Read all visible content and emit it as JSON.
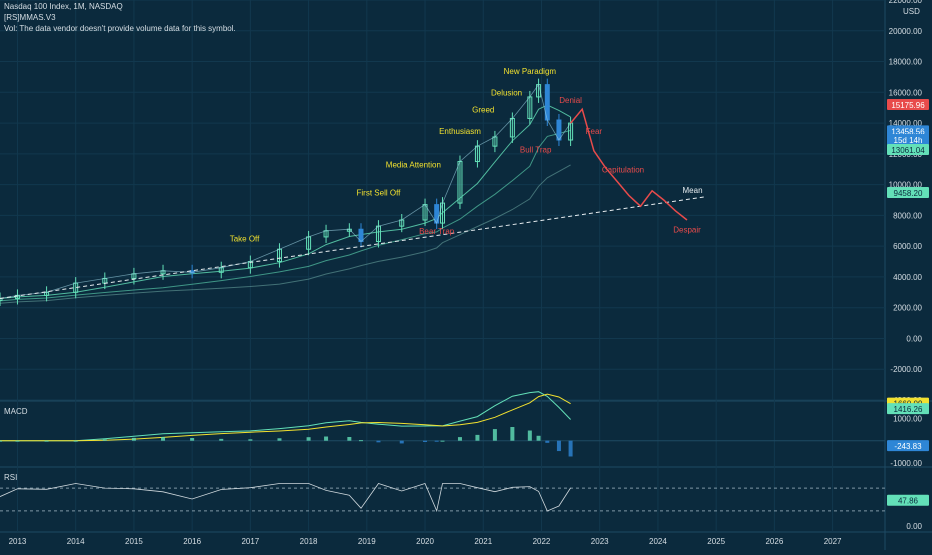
{
  "header": {
    "symbol_line": "Nasdaq 100 Index, 1M, NASDAQ",
    "indicator_line": "[RS]MMAS.V3",
    "vol_line": "Vol: The data vendor doesn't provide volume data for this symbol.",
    "currency": "USD"
  },
  "panes": {
    "macd_title": "MACD",
    "rsi_title": "RSI"
  },
  "chart_data": {
    "type": "line",
    "title": "Nasdaq 100 Index, 1M, NASDAQ",
    "x_ticks": [
      "2013",
      "2014",
      "2015",
      "2016",
      "2017",
      "2018",
      "2019",
      "2020",
      "2021",
      "2022",
      "2023",
      "2024",
      "2025",
      "2026",
      "2027"
    ],
    "y_ticks": [
      "22000.00",
      "20000.00",
      "18000.00",
      "16000.00",
      "14000.00",
      "12000.00",
      "10000.00",
      "8000.00",
      "6000.00",
      "4000.00",
      "2000.00",
      "0.00",
      "-2000.00",
      "-4000.00"
    ],
    "ylim": [
      -4000,
      22000
    ],
    "price_series": {
      "x": [
        2012.7,
        2013.0,
        2013.5,
        2014.0,
        2014.5,
        2015.0,
        2015.5,
        2016.0,
        2016.5,
        2017.0,
        2017.5,
        2018.0,
        2018.3,
        2018.7,
        2018.9,
        2019.2,
        2019.6,
        2020.0,
        2020.2,
        2020.3,
        2020.6,
        2020.9,
        2021.2,
        2021.5,
        2021.8,
        2021.95,
        2022.1,
        2022.3,
        2022.5
      ],
      "y": [
        2600,
        2800,
        3000,
        3600,
        3900,
        4200,
        4400,
        4300,
        4600,
        5000,
        5800,
        6600,
        7000,
        7100,
        6300,
        7300,
        7700,
        8700,
        7500,
        8800,
        11500,
        12500,
        13100,
        14300,
        15700,
        16500,
        14200,
        12900,
        14000
      ]
    },
    "projection_series": {
      "name": "projection",
      "color": "#e84b4b",
      "x": [
        2022.5,
        2022.7,
        2022.9,
        2023.1,
        2023.3,
        2023.5,
        2023.7,
        2023.9,
        2024.1,
        2024.3,
        2024.5
      ],
      "y": [
        14000,
        14900,
        12200,
        11100,
        10200,
        9300,
        8600,
        9600,
        9000,
        8300,
        7700
      ]
    },
    "mean_line": {
      "label": "Mean",
      "x": [
        2012.7,
        2024.8
      ],
      "y": [
        2600,
        9200
      ]
    },
    "annotations": [
      {
        "text": "Take Off",
        "x": 2016.9,
        "y": 6300,
        "color": "#f2e12f"
      },
      {
        "text": "First Sell Off",
        "x": 2019.2,
        "y": 9300,
        "color": "#f2e12f"
      },
      {
        "text": "Media Attention",
        "x": 2019.8,
        "y": 11100,
        "color": "#f2e12f"
      },
      {
        "text": "Enthusiasm",
        "x": 2020.6,
        "y": 13300,
        "color": "#f2e12f"
      },
      {
        "text": "Greed",
        "x": 2021.0,
        "y": 14700,
        "color": "#f2e12f"
      },
      {
        "text": "Delusion",
        "x": 2021.4,
        "y": 15800,
        "color": "#f2e12f"
      },
      {
        "text": "New Paradigm",
        "x": 2021.8,
        "y": 17200,
        "color": "#f2e12f"
      },
      {
        "text": "Denial",
        "x": 2022.5,
        "y": 15300,
        "color": "#e84b4b"
      },
      {
        "text": "Fear",
        "x": 2022.9,
        "y": 13300,
        "color": "#e84b4b"
      },
      {
        "text": "Bull Trap",
        "x": 2021.9,
        "y": 12100,
        "color": "#e84b4b"
      },
      {
        "text": "Capitulation",
        "x": 2023.4,
        "y": 10800,
        "color": "#e84b4b"
      },
      {
        "text": "Bear Trap",
        "x": 2020.2,
        "y": 6800,
        "color": "#e84b4b"
      },
      {
        "text": "Despair",
        "x": 2024.5,
        "y": 6900,
        "color": "#e84b4b"
      }
    ],
    "price_labels": [
      {
        "text": "15175.96",
        "y": 15175.96,
        "color": "#e84b4b"
      },
      {
        "text": "13458.56",
        "y": 13458.56,
        "color": "#2e86d6"
      },
      {
        "text": "15d 14h",
        "y": 12900,
        "color": "#2e86d6"
      },
      {
        "text": "13061.04",
        "y": 12250,
        "color": "#63e0b8"
      },
      {
        "text": "9458.20",
        "y": 9458.2,
        "color": "#63e0b8"
      }
    ],
    "macd": {
      "ylim": [
        -1000,
        1600
      ],
      "y_ticks": [
        "1000.00",
        "-1000.00"
      ],
      "values_labels": [
        {
          "text": "1660.09",
          "color": "#f2e12f",
          "v": 1660
        },
        {
          "text": "1416.26",
          "color": "#63e0b8",
          "v": 1416
        },
        {
          "text": "-243.83",
          "color": "#2e86d6",
          "v": -244
        }
      ]
    },
    "rsi": {
      "y_ticks": [
        "0.00"
      ],
      "value_label": {
        "text": "47.86",
        "color": "#63e0b8"
      }
    }
  }
}
